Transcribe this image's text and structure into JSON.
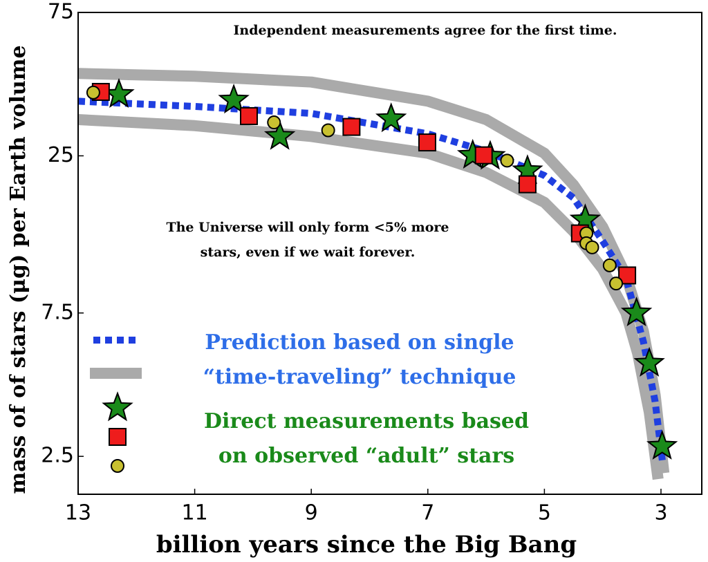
{
  "chart_data": {
    "type": "scatter",
    "xlabel": "billion years since the Big Bang",
    "ylabel": "mass of of stars (μg) per Earth volume",
    "xlim": [
      13,
      2.3
    ],
    "ylim": [
      1.87,
      75
    ],
    "xticks": [
      13,
      11,
      9,
      7,
      5,
      3
    ],
    "yticks": [
      2.5,
      7.5,
      25,
      75
    ],
    "log_y": true,
    "annotations": [
      {
        "lines": [
          "Independent measurements agree for the first time."
        ]
      },
      {
        "lines": [
          "The Universe will only form <5% more",
          "stars, even if we wait forever."
        ]
      }
    ],
    "prediction_label": [
      "Prediction based on single",
      "“time-traveling” technique"
    ],
    "measurements_label": [
      "Direct measurements based",
      "on observed “adult” stars"
    ],
    "curves": [
      {
        "style": "band",
        "color": "#aaaaaa",
        "x": [
          13,
          11,
          9,
          7,
          6,
          5,
          4.5,
          4,
          3.6,
          3.3,
          3.1,
          2.95
        ],
        "values": [
          47,
          46,
          44,
          38,
          33,
          25.5,
          20,
          14.5,
          10,
          6.5,
          4,
          2.2
        ]
      },
      {
        "style": "band",
        "color": "#aaaaaa",
        "x": [
          13,
          11,
          9,
          7,
          6,
          5,
          4.5,
          4,
          3.6,
          3.4,
          3.2,
          3.05
        ],
        "values": [
          33,
          31.5,
          29,
          25.5,
          22,
          17.5,
          14,
          10.5,
          7.5,
          5.5,
          3.5,
          2.1
        ]
      },
      {
        "style": "dotted",
        "color": "#1f3fe0",
        "x": [
          13,
          11,
          9,
          7,
          6,
          5,
          4.5,
          4,
          3.6,
          3.3,
          3.1,
          2.97
        ],
        "values": [
          38,
          36.5,
          34.6,
          29.6,
          25.9,
          21.5,
          18.1,
          13,
          9.8,
          6,
          3.8,
          2.36
        ]
      }
    ],
    "series": [
      {
        "marker": "star",
        "color": "#1a8a1a",
        "x": [
          12.3,
          10.33,
          9.54,
          7.63,
          6.23,
          5.93,
          5.29,
          4.3,
          3.42,
          3.2,
          2.98
        ],
        "values": [
          40,
          38.3,
          29,
          33.2,
          25.1,
          24.9,
          22.3,
          15.3,
          7.5,
          5.1,
          2.7
        ]
      },
      {
        "marker": "square",
        "color": "#ee1c1c",
        "x": [
          12.61,
          10.07,
          8.31,
          7.01,
          6.04,
          5.29,
          4.39,
          3.58
        ],
        "values": [
          40.8,
          33.9,
          31.2,
          27.7,
          25.1,
          20.1,
          13.8,
          10
        ]
      },
      {
        "marker": "circle",
        "color": "#c8c030",
        "x": [
          12.74,
          9.64,
          8.71,
          5.64,
          4.28,
          4.28,
          4.18,
          3.88,
          3.77
        ],
        "values": [
          40.6,
          32.3,
          30.4,
          24.1,
          13.8,
          12.8,
          12.4,
          10.8,
          9.4
        ]
      }
    ]
  }
}
